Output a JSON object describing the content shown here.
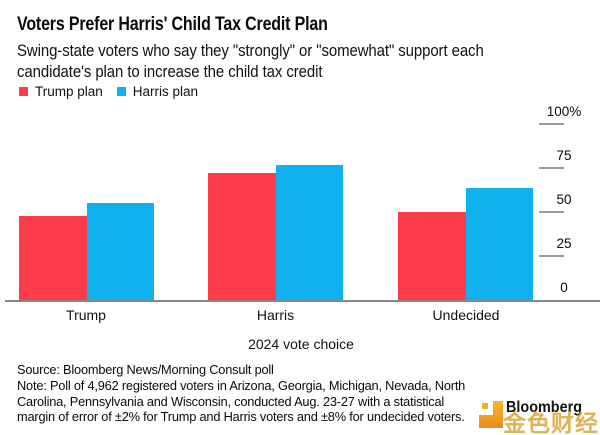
{
  "header": {
    "title": "Voters Prefer Harris' Child Tax Credit Plan",
    "subtitle_lines": [
      "Swing-state voters who say they \"strongly\" or \"somewhat\" support each",
      "candidate's plan to increase the child tax credit"
    ]
  },
  "legend": {
    "items": [
      {
        "label": "Trump plan",
        "color": "#fa3c4c"
      },
      {
        "label": "Harris plan",
        "color": "#0fb1ef"
      }
    ]
  },
  "chart_data": {
    "type": "bar",
    "title": "Voters Prefer Harris' Child Tax Credit Plan",
    "subtitle": "Swing-state voters who say they \"strongly\" or \"somewhat\" support each candidate's plan to increase the child tax credit",
    "categories": [
      "Trump",
      "Harris",
      "Undecided"
    ],
    "series": [
      {
        "name": "Trump plan",
        "color": "#fa3c4c",
        "values": [
          48,
          72,
          50
        ]
      },
      {
        "name": "Harris plan",
        "color": "#0fb1ef",
        "values": [
          55,
          77,
          64
        ]
      }
    ],
    "xlabel": "2024 vote choice",
    "ylabel": "",
    "ylim": [
      0,
      100
    ],
    "yticks": [
      {
        "value": 0,
        "label": "0"
      },
      {
        "value": 25,
        "label": "25"
      },
      {
        "value": 50,
        "label": "50"
      },
      {
        "value": 75,
        "label": "75"
      },
      {
        "value": 100,
        "label": "100%"
      }
    ],
    "grid": false,
    "legend_position": "top-left",
    "y_axis_side": "right"
  },
  "footer": {
    "source": "Source: Bloomberg News/Morning Consult poll",
    "note_lines": [
      "Note: Poll of 4,962 registered voters in Arizona, Georgia, Michigan, Nevada, North",
      "Carolina, Pennsylvania and Wisconsin, conducted Aug. 23-27 with a statistical",
      "margin of error of ±2% for Trump and Harris voters and ±8% for undecided voters."
    ]
  },
  "branding": {
    "logo_text": "Bloomberg",
    "watermark": "金色财经"
  },
  "colors": {
    "trump_plan": "#fa3c4c",
    "harris_plan": "#0fb1ef",
    "axis_line": "#89877f",
    "logo_orange": "#f2a324",
    "watermark_gold": "#d7a42c"
  }
}
